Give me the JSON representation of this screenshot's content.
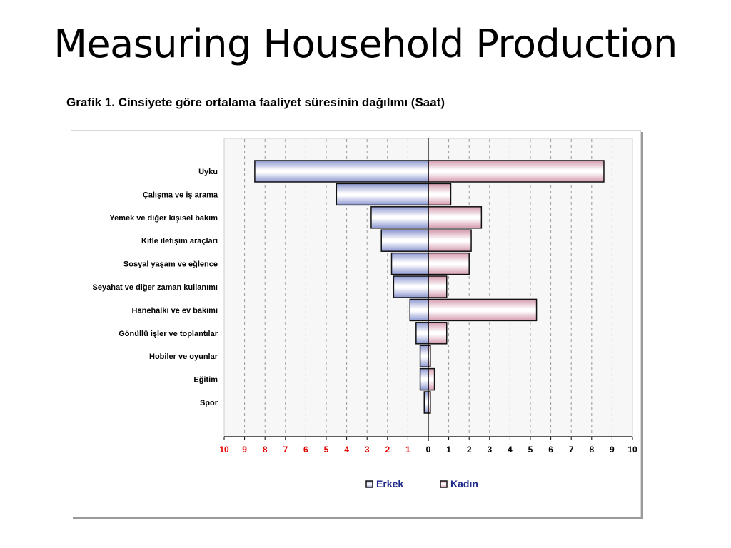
{
  "slide": {
    "title": "Measuring Household Production"
  },
  "chart_data": {
    "type": "bar",
    "orientation": "horizontal",
    "layout": "diverging",
    "title": "Grafik 1. Cinsiyete göre ortalama faaliyet süresinin dağılımı (Saat)",
    "categories": [
      "Uyku",
      "Çalışma ve iş arama",
      "Yemek ve diğer kişisel bakım",
      "Kitle iletişim araçları",
      "Sosyal yaşam ve eğlence",
      "Seyahat ve diğer zaman kullanımı",
      "Hanehalkı ve ev bakımı",
      "Gönüllü işler ve toplantılar",
      "Hobiler ve oyunlar",
      "Eğitim",
      "Spor"
    ],
    "series": [
      {
        "name": "Erkek",
        "side": "left",
        "color": "#9aa3d6",
        "values": [
          8.5,
          4.5,
          2.8,
          2.3,
          1.8,
          1.7,
          0.9,
          0.6,
          0.4,
          0.4,
          0.2
        ]
      },
      {
        "name": "Kadın",
        "side": "right",
        "color": "#d9a3b3",
        "values": [
          8.6,
          1.1,
          2.6,
          2.1,
          2.0,
          0.9,
          5.3,
          0.9,
          0.1,
          0.3,
          0.1
        ]
      }
    ],
    "x_ticks_left": [
      "10",
      "9",
      "8",
      "7",
      "6",
      "5",
      "4",
      "3",
      "2",
      "1"
    ],
    "x_ticks_right": [
      "0",
      "1",
      "2",
      "3",
      "4",
      "5",
      "6",
      "7",
      "8",
      "9",
      "10"
    ],
    "left_tick_color": "#e00000",
    "right_tick_color": "#000000",
    "xlim": [
      -10,
      10
    ],
    "grid": "vertical-dashed",
    "legend_position": "bottom-center"
  }
}
